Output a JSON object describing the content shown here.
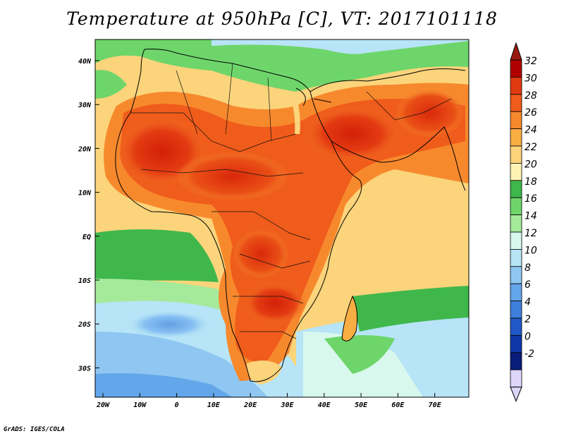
{
  "title": "Temperature at 950hPa [C], VT: 2017101118",
  "footer": "GrADS: IGES/COLA",
  "map": {
    "region": "Africa and Middle East",
    "lon_range": [
      -22,
      80
    ],
    "lat_range": [
      -37,
      45
    ],
    "x_ticks": [
      "20W",
      "10W",
      "0",
      "10E",
      "20E",
      "30E",
      "40E",
      "50E",
      "60E",
      "70E"
    ],
    "y_ticks": [
      "40N",
      "30N",
      "20N",
      "10N",
      "EQ",
      "10S",
      "20S",
      "30S"
    ]
  },
  "colorbar": {
    "labels": [
      "32",
      "30",
      "28",
      "26",
      "24",
      "22",
      "20",
      "18",
      "16",
      "14",
      "12",
      "10",
      "8",
      "6",
      "4",
      "2",
      "0",
      "-2"
    ],
    "colors": [
      "#b00000",
      "#e03a10",
      "#f05c1b",
      "#f7892d",
      "#f9ae43",
      "#fbd47b",
      "#fff3b3",
      "#3fb74b",
      "#6ed56a",
      "#a5ea9b",
      "#d8f8ee",
      "#b7e4f7",
      "#8fc7f2",
      "#63a7ea",
      "#3e7fdb",
      "#2158c7",
      "#0f37a9",
      "#081d79",
      "#ded6fa"
    ],
    "top_cap_color": "#9a1a10",
    "bottom_cap_color": "#ddd6fb"
  }
}
